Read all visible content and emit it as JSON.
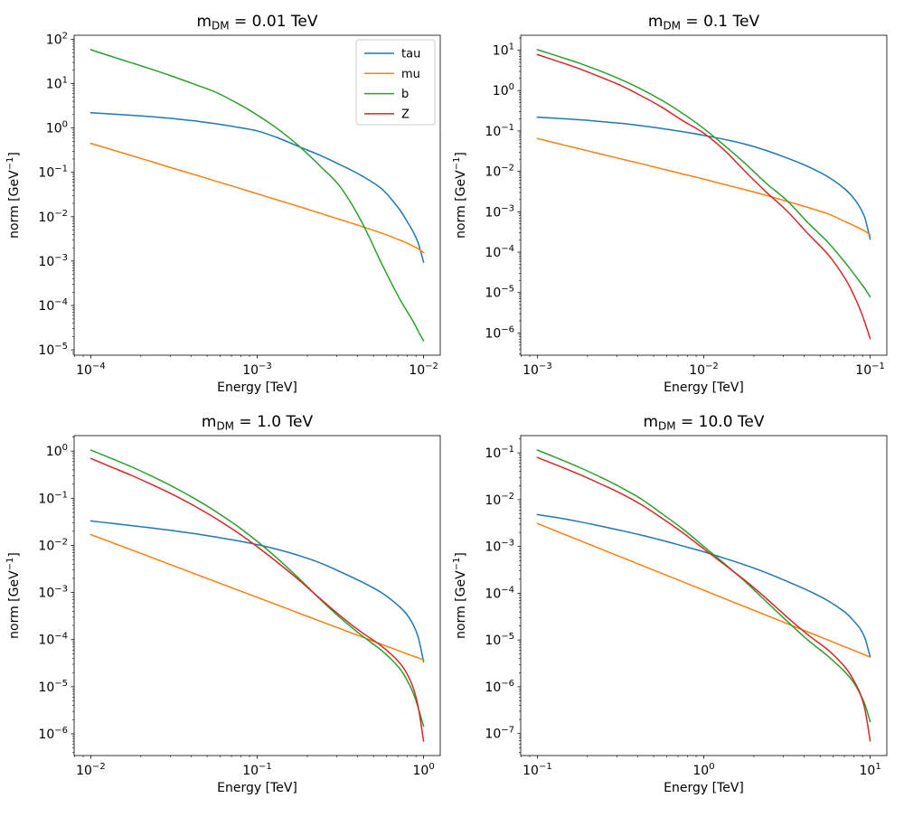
{
  "figure": {
    "background": "#ffffff",
    "tick_base": "10",
    "minus": "−",
    "xlabel": "Energy [TeV]",
    "ylabel_parts": [
      "norm [GeV",
      "−1",
      "]"
    ]
  },
  "legend": {
    "entries": [
      {
        "label": "tau",
        "color": "#1f77b4"
      },
      {
        "label": "mu",
        "color": "#ff7f0e"
      },
      {
        "label": "b",
        "color": "#2ca02c"
      },
      {
        "label": "Z",
        "color": "#d62728"
      }
    ]
  },
  "chart_data": [
    {
      "type": "line",
      "xscale": "log",
      "yscale": "log",
      "grid": false,
      "title": {
        "prefix": "m",
        "sub": "DM",
        "rest": " = 0.01 TeV"
      },
      "xlabel": "Energy [TeV]",
      "ylabel": "norm [GeV^-1]",
      "xlim_log": [
        -4.1,
        -1.9
      ],
      "ylim_log": [
        -5.12,
        2.09
      ],
      "x_tick_exponents": [
        -4,
        -3,
        -2
      ],
      "y_tick_exponents": [
        2,
        1,
        0,
        -1,
        -2,
        -3,
        -4,
        -5
      ],
      "legend_here": true,
      "series": [
        {
          "name": "tau",
          "color": "#1f77b4",
          "x": [
            0.0001,
            0.000133,
            0.000178,
            0.000237,
            0.000316,
            0.000422,
            0.000562,
            0.00075,
            0.001,
            0.00133,
            0.00178,
            0.00237,
            0.00316,
            0.00422,
            0.00562,
            0.00708,
            0.00794,
            0.0087,
            0.0093,
            0.01
          ],
          "y": [
            2.2,
            2.07,
            1.93,
            1.78,
            1.62,
            1.44,
            1.25,
            1.05,
            0.86,
            0.6,
            0.38,
            0.245,
            0.148,
            0.085,
            0.042,
            0.0155,
            0.008,
            0.0044,
            0.0025,
            0.00095
          ]
        },
        {
          "name": "mu",
          "color": "#ff7f0e",
          "x": [
            0.0001,
            0.000133,
            0.000178,
            0.000237,
            0.000316,
            0.000422,
            0.000562,
            0.00075,
            0.001,
            0.00133,
            0.00178,
            0.00237,
            0.00316,
            0.00422,
            0.00562,
            0.00708,
            0.00794,
            0.0087,
            0.0093,
            0.01
          ],
          "y": [
            0.45,
            0.326,
            0.235,
            0.17,
            0.122,
            0.0885,
            0.0638,
            0.0459,
            0.033,
            0.0237,
            0.017,
            0.0121,
            0.0086,
            0.0061,
            0.00425,
            0.00305,
            0.00255,
            0.00215,
            0.0019,
            0.00155
          ]
        },
        {
          "name": "b",
          "color": "#2ca02c",
          "x": [
            0.0001,
            0.000133,
            0.000178,
            0.000237,
            0.000316,
            0.000422,
            0.000562,
            0.00075,
            0.001,
            0.00133,
            0.00178,
            0.00237,
            0.00316,
            0.00422,
            0.00562,
            0.00708,
            0.00794,
            0.0087,
            0.0093,
            0.01
          ],
          "y": [
            58,
            41,
            29,
            20.5,
            14.2,
            9.6,
            6.4,
            3.7,
            1.97,
            0.95,
            0.395,
            0.143,
            0.047,
            0.008,
            0.00085,
            0.000155,
            7.5e-05,
            4.2e-05,
            2.6e-05,
            1.6e-05
          ]
        },
        {
          "name": "Z",
          "color": "#d62728",
          "x": [],
          "y": []
        }
      ]
    },
    {
      "type": "line",
      "xscale": "log",
      "yscale": "log",
      "grid": false,
      "title": {
        "prefix": "m",
        "sub": "DM",
        "rest": " = 0.1 TeV"
      },
      "xlabel": "Energy [TeV]",
      "ylabel": "norm [GeV^-1]",
      "xlim_log": [
        -3.1,
        -0.9
      ],
      "ylim_log": [
        -6.55,
        1.37
      ],
      "x_tick_exponents": [
        -3,
        -2,
        -1
      ],
      "y_tick_exponents": [
        1,
        0,
        -1,
        -2,
        -3,
        -4,
        -5,
        -6
      ],
      "legend_here": false,
      "series": [
        {
          "name": "tau",
          "color": "#1f77b4",
          "x": [
            0.001,
            0.00133,
            0.00178,
            0.00237,
            0.00316,
            0.00422,
            0.00562,
            0.0075,
            0.01,
            0.0133,
            0.0178,
            0.0237,
            0.0316,
            0.0422,
            0.0562,
            0.0708,
            0.0794,
            0.087,
            0.093,
            0.1
          ],
          "y": [
            0.22,
            0.205,
            0.19,
            0.172,
            0.155,
            0.135,
            0.115,
            0.096,
            0.078,
            0.062,
            0.047,
            0.033,
            0.0215,
            0.0132,
            0.0072,
            0.0036,
            0.0022,
            0.00125,
            0.0007,
            0.00021
          ]
        },
        {
          "name": "mu",
          "color": "#ff7f0e",
          "x": [
            0.001,
            0.00133,
            0.00178,
            0.00237,
            0.00316,
            0.00422,
            0.00562,
            0.0075,
            0.01,
            0.0133,
            0.0178,
            0.0237,
            0.0316,
            0.0422,
            0.0562,
            0.0708,
            0.0794,
            0.087,
            0.093,
            0.1
          ],
          "y": [
            0.065,
            0.0487,
            0.0365,
            0.0274,
            0.0205,
            0.0154,
            0.0115,
            0.0086,
            0.00645,
            0.00475,
            0.0035,
            0.00255,
            0.00182,
            0.00128,
            0.00088,
            0.00057,
            0.00046,
            0.00038,
            0.00033,
            0.00027
          ]
        },
        {
          "name": "b",
          "color": "#2ca02c",
          "x": [
            0.001,
            0.00133,
            0.00178,
            0.00237,
            0.00316,
            0.00422,
            0.00562,
            0.0075,
            0.01,
            0.0133,
            0.0178,
            0.0237,
            0.0316,
            0.0422,
            0.0562,
            0.0708,
            0.0794,
            0.087,
            0.093,
            0.1
          ],
          "y": [
            10.3,
            7.1,
            4.8,
            3.1,
            1.9,
            1.08,
            0.57,
            0.27,
            0.115,
            0.044,
            0.0155,
            0.0051,
            0.0019,
            0.00054,
            0.00017,
            5.5e-05,
            3e-05,
            1.8e-05,
            1.25e-05,
            7.8e-06
          ]
        },
        {
          "name": "Z",
          "color": "#d62728",
          "x": [
            0.001,
            0.00133,
            0.00178,
            0.00237,
            0.00316,
            0.00422,
            0.00562,
            0.0075,
            0.01,
            0.0133,
            0.0178,
            0.0237,
            0.0316,
            0.0422,
            0.0562,
            0.0708,
            0.0794,
            0.087,
            0.093,
            0.1
          ],
          "y": [
            7.8,
            5.3,
            3.5,
            2.2,
            1.35,
            0.74,
            0.385,
            0.178,
            0.088,
            0.0335,
            0.0098,
            0.0031,
            0.00105,
            0.00029,
            8.5e-05,
            2.2e-05,
            9e-06,
            3.8e-06,
            1.8e-06,
            7.2e-07
          ]
        }
      ]
    },
    {
      "type": "line",
      "xscale": "log",
      "yscale": "log",
      "grid": false,
      "title": {
        "prefix": "m",
        "sub": "DM",
        "rest": " = 1.0 TeV"
      },
      "xlabel": "Energy [TeV]",
      "ylabel": "norm [GeV^-1]",
      "xlim_log": [
        -2.1,
        0.1
      ],
      "ylim_log": [
        -6.46,
        0.33
      ],
      "x_tick_exponents": [
        -2,
        -1,
        0
      ],
      "y_tick_exponents": [
        0,
        -1,
        -2,
        -3,
        -4,
        -5,
        -6
      ],
      "legend_here": false,
      "series": [
        {
          "name": "tau",
          "color": "#1f77b4",
          "x": [
            0.01,
            0.0133,
            0.0178,
            0.0237,
            0.0316,
            0.0422,
            0.0562,
            0.075,
            0.1,
            0.133,
            0.178,
            0.237,
            0.316,
            0.422,
            0.562,
            0.708,
            0.794,
            0.87,
            0.93,
            1.0
          ],
          "y": [
            0.033,
            0.0295,
            0.0262,
            0.0232,
            0.0204,
            0.0177,
            0.0151,
            0.0127,
            0.0104,
            0.0082,
            0.0061,
            0.0043,
            0.00275,
            0.0017,
            0.00098,
            0.00052,
            0.00034,
            0.0002,
            0.00011,
            3.4e-05
          ]
        },
        {
          "name": "mu",
          "color": "#ff7f0e",
          "x": [
            0.01,
            0.0133,
            0.0178,
            0.0237,
            0.0316,
            0.0422,
            0.0562,
            0.075,
            0.1,
            0.133,
            0.178,
            0.237,
            0.316,
            0.422,
            0.562,
            0.708,
            0.794,
            0.87,
            0.93,
            1.0
          ],
          "y": [
            0.017,
            0.0116,
            0.0079,
            0.0054,
            0.00367,
            0.0025,
            0.0017,
            0.00116,
            0.00079,
            0.00054,
            0.000366,
            0.000249,
            0.00017,
            0.000116,
            7.9e-05,
            5.8e-05,
            5e-05,
            4.45e-05,
            4.1e-05,
            3.7e-05
          ]
        },
        {
          "name": "b",
          "color": "#2ca02c",
          "x": [
            0.01,
            0.0133,
            0.0178,
            0.0237,
            0.0316,
            0.0422,
            0.0562,
            0.075,
            0.1,
            0.133,
            0.178,
            0.237,
            0.316,
            0.422,
            0.562,
            0.708,
            0.794,
            0.87,
            0.93,
            1.0
          ],
          "y": [
            1.05,
            0.7,
            0.455,
            0.285,
            0.172,
            0.098,
            0.053,
            0.0265,
            0.0122,
            0.0052,
            0.002,
            0.00074,
            0.00029,
            0.000125,
            5.8e-05,
            2.6e-05,
            1.4e-05,
            7e-06,
            3.5e-06,
            1.45e-06
          ]
        },
        {
          "name": "Z",
          "color": "#d62728",
          "x": [
            0.01,
            0.0133,
            0.0178,
            0.0237,
            0.0316,
            0.0422,
            0.0562,
            0.075,
            0.1,
            0.133,
            0.178,
            0.237,
            0.316,
            0.422,
            0.562,
            0.708,
            0.794,
            0.87,
            0.93,
            1.0
          ],
          "y": [
            0.7,
            0.46,
            0.3,
            0.19,
            0.117,
            0.068,
            0.0375,
            0.0195,
            0.0094,
            0.0043,
            0.00185,
            0.00076,
            0.00032,
            0.000145,
            7.2e-05,
            3.4e-05,
            1.9e-05,
            9e-06,
            3.6e-06,
            7e-07
          ]
        }
      ]
    },
    {
      "type": "line",
      "xscale": "log",
      "yscale": "log",
      "grid": false,
      "title": {
        "prefix": "m",
        "sub": "DM",
        "rest": " = 10.0 TeV"
      },
      "xlabel": "Energy [TeV]",
      "ylabel": "norm [GeV^-1]",
      "xlim_log": [
        -1.1,
        1.1
      ],
      "ylim_log": [
        -7.47,
        -0.63
      ],
      "x_tick_exponents": [
        -1,
        0,
        1
      ],
      "y_tick_exponents": [
        -1,
        -2,
        -3,
        -4,
        -5,
        -6,
        -7
      ],
      "legend_here": false,
      "series": [
        {
          "name": "tau",
          "color": "#1f77b4",
          "x": [
            0.1,
            0.133,
            0.178,
            0.237,
            0.316,
            0.422,
            0.562,
            0.75,
            1.0,
            1.33,
            1.78,
            2.37,
            3.16,
            4.22,
            5.62,
            7.08,
            7.94,
            8.7,
            9.3,
            10.0
          ],
          "y": [
            0.0048,
            0.0041,
            0.0034,
            0.00275,
            0.0022,
            0.00175,
            0.00135,
            0.00102,
            0.00077,
            0.00056,
            0.0004,
            0.000275,
            0.00018,
            0.000115,
            6.8e-05,
            3.9e-05,
            2.6e-05,
            1.75e-05,
            1.1e-05,
            4.4e-06
          ]
        },
        {
          "name": "mu",
          "color": "#ff7f0e",
          "x": [
            0.1,
            0.133,
            0.178,
            0.237,
            0.316,
            0.422,
            0.562,
            0.75,
            1.0,
            1.33,
            1.78,
            2.37,
            3.16,
            4.22,
            5.62,
            7.08,
            7.94,
            8.7,
            9.3,
            10.0
          ],
          "y": [
            0.0031,
            0.00206,
            0.00136,
            0.000905,
            0.0006,
            0.000398,
            0.000264,
            0.000175,
            0.000116,
            7.7e-05,
            5.1e-05,
            3.39e-05,
            2.25e-05,
            1.49e-05,
            9.9e-06,
            7.1e-06,
            6.05e-06,
            5.3e-06,
            4.8e-06,
            4.3e-06
          ]
        },
        {
          "name": "b",
          "color": "#2ca02c",
          "x": [
            0.1,
            0.133,
            0.178,
            0.237,
            0.316,
            0.422,
            0.562,
            0.75,
            1.0,
            1.33,
            1.78,
            2.37,
            3.16,
            4.22,
            5.62,
            7.08,
            7.94,
            8.7,
            9.3,
            10.0
          ],
          "y": [
            0.115,
            0.0765,
            0.0495,
            0.031,
            0.0185,
            0.0103,
            0.005,
            0.00235,
            0.001,
            0.00043,
            0.000175,
            6.7e-05,
            2.55e-05,
            1e-05,
            4.4e-06,
            2.05e-06,
            1.25e-06,
            7e-07,
            4.2e-07,
            1.8e-07
          ]
        },
        {
          "name": "Z",
          "color": "#d62728",
          "x": [
            0.1,
            0.133,
            0.178,
            0.237,
            0.316,
            0.422,
            0.562,
            0.75,
            1.0,
            1.33,
            1.78,
            2.37,
            3.16,
            4.22,
            5.62,
            7.08,
            7.94,
            8.7,
            9.3,
            10.0
          ],
          "y": [
            0.08,
            0.0535,
            0.035,
            0.0222,
            0.0137,
            0.0078,
            0.004,
            0.00195,
            0.00089,
            0.00041,
            0.000185,
            7.8e-05,
            3.1e-05,
            1.3e-05,
            6e-06,
            2.6e-06,
            1.4e-06,
            7.2e-07,
            3.3e-07,
            7e-08
          ]
        }
      ]
    }
  ]
}
